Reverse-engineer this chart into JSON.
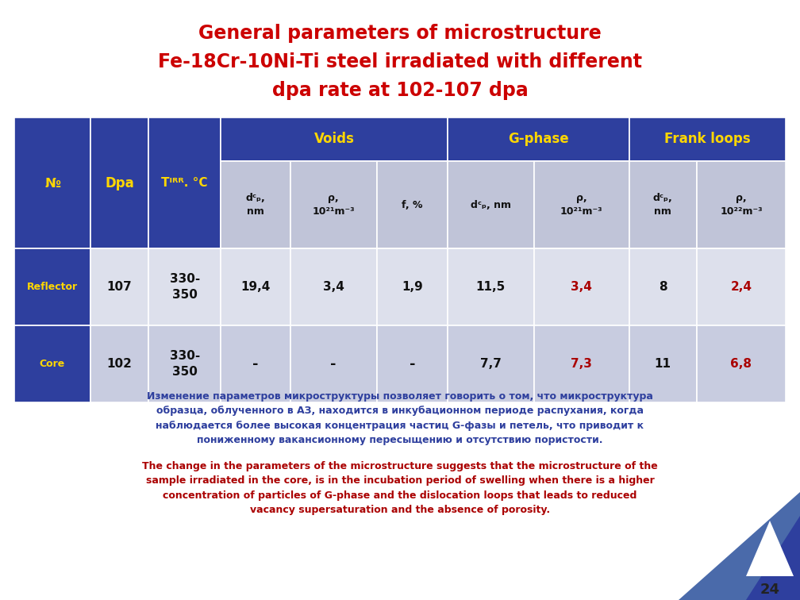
{
  "title_line1": "General parameters of microstructure",
  "title_line2": "Fe-18Cr-10Ni-Ti steel irradiated with different",
  "title_line3": "dpa rate at 102-107 dpa",
  "title_color": "#cc0000",
  "bg_color": "#ffffff",
  "table_header_bg": "#2e3f9e",
  "table_header_text": "#ffd700",
  "table_subheader_bg": "#c0c4d8",
  "table_subheader_text": "#111111",
  "row1_bg": "#dde0ec",
  "row2_bg": "#c8cce0",
  "row_label_bg": "#2e3f9e",
  "row_label_text": "#ffd700",
  "normal_text": "#111111",
  "red_text": "#aa0000",
  "russian_text_color": "#2e3f9e",
  "english_text_color": "#aa0000",
  "page_number": "24",
  "corner_color1": "#4a6aaa",
  "corner_color2": "#2e3f9e"
}
